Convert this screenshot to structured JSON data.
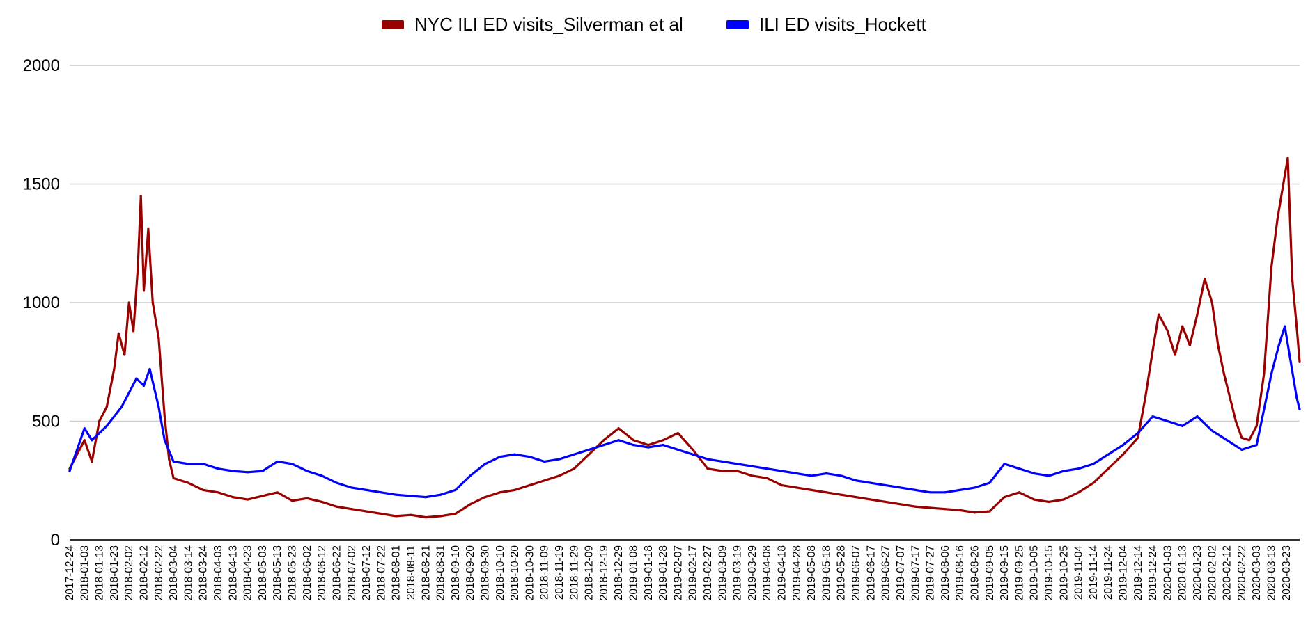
{
  "chart_data": {
    "type": "line",
    "x_start": "2017-12-24",
    "x_end": "2020-04-01",
    "x_tick_labels": [
      "2017-12-24",
      "2018-01-03",
      "2018-01-13",
      "2018-01-23",
      "2018-02-02",
      "2018-02-12",
      "2018-02-22",
      "2018-03-04",
      "2018-03-14",
      "2018-03-24",
      "2018-04-03",
      "2018-04-13",
      "2018-04-23",
      "2018-05-03",
      "2018-05-13",
      "2018-05-23",
      "2018-06-02",
      "2018-06-12",
      "2018-06-22",
      "2018-07-02",
      "2018-07-12",
      "2018-07-22",
      "2018-08-01",
      "2018-08-11",
      "2018-08-21",
      "2018-08-31",
      "2018-09-10",
      "2018-09-20",
      "2018-09-30",
      "2018-10-10",
      "2018-10-20",
      "2018-10-30",
      "2018-11-09",
      "2018-11-19",
      "2018-11-29",
      "2018-12-09",
      "2018-12-19",
      "2018-12-29",
      "2019-01-08",
      "2019-01-18",
      "2019-01-28",
      "2019-02-07",
      "2019-02-17",
      "2019-02-27",
      "2019-03-09",
      "2019-03-19",
      "2019-03-29",
      "2019-04-08",
      "2019-04-18",
      "2019-04-28",
      "2019-05-08",
      "2019-05-18",
      "2019-05-28",
      "2019-06-07",
      "2019-06-17",
      "2019-06-27",
      "2019-07-07",
      "2019-07-17",
      "2019-07-27",
      "2019-08-06",
      "2019-08-16",
      "2019-08-26",
      "2019-09-05",
      "2019-09-15",
      "2019-09-25",
      "2019-10-05",
      "2019-10-15",
      "2019-10-25",
      "2019-11-04",
      "2019-11-14",
      "2019-11-24",
      "2019-12-04",
      "2019-12-14",
      "2019-12-24",
      "2020-01-03",
      "2020-01-13",
      "2020-01-23",
      "2020-02-02",
      "2020-02-12",
      "2020-02-22",
      "2020-03-03",
      "2020-03-13",
      "2020-03-23"
    ],
    "y_ticks": [
      "0",
      "500",
      "1000",
      "1500",
      "2000"
    ],
    "ylim": [
      0,
      2000
    ],
    "grid": true,
    "legend_position": "top",
    "series": [
      {
        "name": "NYC ILI ED visits_Silverman et al",
        "color": "#990000",
        "points": [
          [
            "2017-12-24",
            300
          ],
          [
            "2018-01-03",
            420
          ],
          [
            "2018-01-08",
            330
          ],
          [
            "2018-01-13",
            500
          ],
          [
            "2018-01-18",
            560
          ],
          [
            "2018-01-23",
            720
          ],
          [
            "2018-01-26",
            870
          ],
          [
            "2018-01-30",
            780
          ],
          [
            "2018-02-02",
            1000
          ],
          [
            "2018-02-05",
            880
          ],
          [
            "2018-02-08",
            1150
          ],
          [
            "2018-02-10",
            1450
          ],
          [
            "2018-02-12",
            1050
          ],
          [
            "2018-02-15",
            1310
          ],
          [
            "2018-02-18",
            1000
          ],
          [
            "2018-02-22",
            850
          ],
          [
            "2018-02-26",
            520
          ],
          [
            "2018-03-01",
            340
          ],
          [
            "2018-03-04",
            260
          ],
          [
            "2018-03-14",
            240
          ],
          [
            "2018-03-24",
            210
          ],
          [
            "2018-04-03",
            200
          ],
          [
            "2018-04-13",
            180
          ],
          [
            "2018-04-23",
            170
          ],
          [
            "2018-05-03",
            185
          ],
          [
            "2018-05-13",
            200
          ],
          [
            "2018-05-23",
            165
          ],
          [
            "2018-06-02",
            175
          ],
          [
            "2018-06-12",
            160
          ],
          [
            "2018-06-22",
            140
          ],
          [
            "2018-07-02",
            130
          ],
          [
            "2018-07-12",
            120
          ],
          [
            "2018-07-22",
            110
          ],
          [
            "2018-08-01",
            100
          ],
          [
            "2018-08-11",
            105
          ],
          [
            "2018-08-21",
            95
          ],
          [
            "2018-08-31",
            100
          ],
          [
            "2018-09-10",
            110
          ],
          [
            "2018-09-20",
            150
          ],
          [
            "2018-09-30",
            180
          ],
          [
            "2018-10-10",
            200
          ],
          [
            "2018-10-20",
            210
          ],
          [
            "2018-10-30",
            230
          ],
          [
            "2018-11-09",
            250
          ],
          [
            "2018-11-19",
            270
          ],
          [
            "2018-11-29",
            300
          ],
          [
            "2018-12-09",
            360
          ],
          [
            "2018-12-19",
            420
          ],
          [
            "2018-12-29",
            470
          ],
          [
            "2019-01-08",
            420
          ],
          [
            "2019-01-18",
            400
          ],
          [
            "2019-01-28",
            420
          ],
          [
            "2019-02-07",
            450
          ],
          [
            "2019-02-17",
            380
          ],
          [
            "2019-02-27",
            300
          ],
          [
            "2019-03-09",
            290
          ],
          [
            "2019-03-19",
            290
          ],
          [
            "2019-03-29",
            270
          ],
          [
            "2019-04-08",
            260
          ],
          [
            "2019-04-18",
            230
          ],
          [
            "2019-04-28",
            220
          ],
          [
            "2019-05-08",
            210
          ],
          [
            "2019-05-18",
            200
          ],
          [
            "2019-05-28",
            190
          ],
          [
            "2019-06-07",
            180
          ],
          [
            "2019-06-17",
            170
          ],
          [
            "2019-06-27",
            160
          ],
          [
            "2019-07-07",
            150
          ],
          [
            "2019-07-17",
            140
          ],
          [
            "2019-07-27",
            135
          ],
          [
            "2019-08-06",
            130
          ],
          [
            "2019-08-16",
            125
          ],
          [
            "2019-08-26",
            115
          ],
          [
            "2019-09-05",
            120
          ],
          [
            "2019-09-15",
            180
          ],
          [
            "2019-09-25",
            200
          ],
          [
            "2019-10-05",
            170
          ],
          [
            "2019-10-15",
            160
          ],
          [
            "2019-10-25",
            170
          ],
          [
            "2019-11-04",
            200
          ],
          [
            "2019-11-14",
            240
          ],
          [
            "2019-11-24",
            300
          ],
          [
            "2019-12-04",
            360
          ],
          [
            "2019-12-14",
            430
          ],
          [
            "2019-12-19",
            600
          ],
          [
            "2019-12-24",
            800
          ],
          [
            "2019-12-28",
            950
          ],
          [
            "2020-01-03",
            880
          ],
          [
            "2020-01-08",
            780
          ],
          [
            "2020-01-13",
            900
          ],
          [
            "2020-01-18",
            820
          ],
          [
            "2020-01-23",
            950
          ],
          [
            "2020-01-28",
            1100
          ],
          [
            "2020-02-02",
            1000
          ],
          [
            "2020-02-06",
            820
          ],
          [
            "2020-02-10",
            700
          ],
          [
            "2020-02-14",
            600
          ],
          [
            "2020-02-18",
            500
          ],
          [
            "2020-02-22",
            430
          ],
          [
            "2020-02-27",
            420
          ],
          [
            "2020-03-03",
            480
          ],
          [
            "2020-03-08",
            700
          ],
          [
            "2020-03-13",
            1150
          ],
          [
            "2020-03-17",
            1350
          ],
          [
            "2020-03-21",
            1500
          ],
          [
            "2020-03-24",
            1610
          ],
          [
            "2020-03-27",
            1100
          ],
          [
            "2020-03-30",
            900
          ],
          [
            "2020-04-01",
            750
          ]
        ]
      },
      {
        "name": "ILI ED visits_Hockett",
        "color": "#0000ff",
        "points": [
          [
            "2017-12-24",
            290
          ],
          [
            "2018-01-03",
            470
          ],
          [
            "2018-01-08",
            420
          ],
          [
            "2018-01-13",
            450
          ],
          [
            "2018-01-18",
            480
          ],
          [
            "2018-01-23",
            520
          ],
          [
            "2018-01-28",
            560
          ],
          [
            "2018-02-02",
            620
          ],
          [
            "2018-02-07",
            680
          ],
          [
            "2018-02-12",
            650
          ],
          [
            "2018-02-16",
            720
          ],
          [
            "2018-02-22",
            560
          ],
          [
            "2018-02-26",
            420
          ],
          [
            "2018-03-04",
            330
          ],
          [
            "2018-03-14",
            320
          ],
          [
            "2018-03-24",
            320
          ],
          [
            "2018-04-03",
            300
          ],
          [
            "2018-04-13",
            290
          ],
          [
            "2018-04-23",
            285
          ],
          [
            "2018-05-03",
            290
          ],
          [
            "2018-05-13",
            330
          ],
          [
            "2018-05-23",
            320
          ],
          [
            "2018-06-02",
            290
          ],
          [
            "2018-06-12",
            270
          ],
          [
            "2018-06-22",
            240
          ],
          [
            "2018-07-02",
            220
          ],
          [
            "2018-07-12",
            210
          ],
          [
            "2018-07-22",
            200
          ],
          [
            "2018-08-01",
            190
          ],
          [
            "2018-08-11",
            185
          ],
          [
            "2018-08-21",
            180
          ],
          [
            "2018-08-31",
            190
          ],
          [
            "2018-09-10",
            210
          ],
          [
            "2018-09-20",
            270
          ],
          [
            "2018-09-30",
            320
          ],
          [
            "2018-10-10",
            350
          ],
          [
            "2018-10-20",
            360
          ],
          [
            "2018-10-30",
            350
          ],
          [
            "2018-11-09",
            330
          ],
          [
            "2018-11-19",
            340
          ],
          [
            "2018-11-29",
            360
          ],
          [
            "2018-12-09",
            380
          ],
          [
            "2018-12-19",
            400
          ],
          [
            "2018-12-29",
            420
          ],
          [
            "2019-01-08",
            400
          ],
          [
            "2019-01-18",
            390
          ],
          [
            "2019-01-28",
            400
          ],
          [
            "2019-02-07",
            380
          ],
          [
            "2019-02-17",
            360
          ],
          [
            "2019-02-27",
            340
          ],
          [
            "2019-03-09",
            330
          ],
          [
            "2019-03-19",
            320
          ],
          [
            "2019-03-29",
            310
          ],
          [
            "2019-04-08",
            300
          ],
          [
            "2019-04-18",
            290
          ],
          [
            "2019-04-28",
            280
          ],
          [
            "2019-05-08",
            270
          ],
          [
            "2019-05-18",
            280
          ],
          [
            "2019-05-28",
            270
          ],
          [
            "2019-06-07",
            250
          ],
          [
            "2019-06-17",
            240
          ],
          [
            "2019-06-27",
            230
          ],
          [
            "2019-07-07",
            220
          ],
          [
            "2019-07-17",
            210
          ],
          [
            "2019-07-27",
            200
          ],
          [
            "2019-08-06",
            200
          ],
          [
            "2019-08-16",
            210
          ],
          [
            "2019-08-26",
            220
          ],
          [
            "2019-09-05",
            240
          ],
          [
            "2019-09-15",
            320
          ],
          [
            "2019-09-25",
            300
          ],
          [
            "2019-10-05",
            280
          ],
          [
            "2019-10-15",
            270
          ],
          [
            "2019-10-25",
            290
          ],
          [
            "2019-11-04",
            300
          ],
          [
            "2019-11-14",
            320
          ],
          [
            "2019-11-24",
            360
          ],
          [
            "2019-12-04",
            400
          ],
          [
            "2019-12-14",
            450
          ],
          [
            "2019-12-24",
            520
          ],
          [
            "2020-01-03",
            500
          ],
          [
            "2020-01-13",
            480
          ],
          [
            "2020-01-23",
            520
          ],
          [
            "2020-02-02",
            460
          ],
          [
            "2020-02-12",
            420
          ],
          [
            "2020-02-22",
            380
          ],
          [
            "2020-03-03",
            400
          ],
          [
            "2020-03-08",
            550
          ],
          [
            "2020-03-13",
            700
          ],
          [
            "2020-03-18",
            820
          ],
          [
            "2020-03-22",
            900
          ],
          [
            "2020-03-26",
            750
          ],
          [
            "2020-03-30",
            600
          ],
          [
            "2020-04-01",
            550
          ]
        ]
      }
    ]
  }
}
